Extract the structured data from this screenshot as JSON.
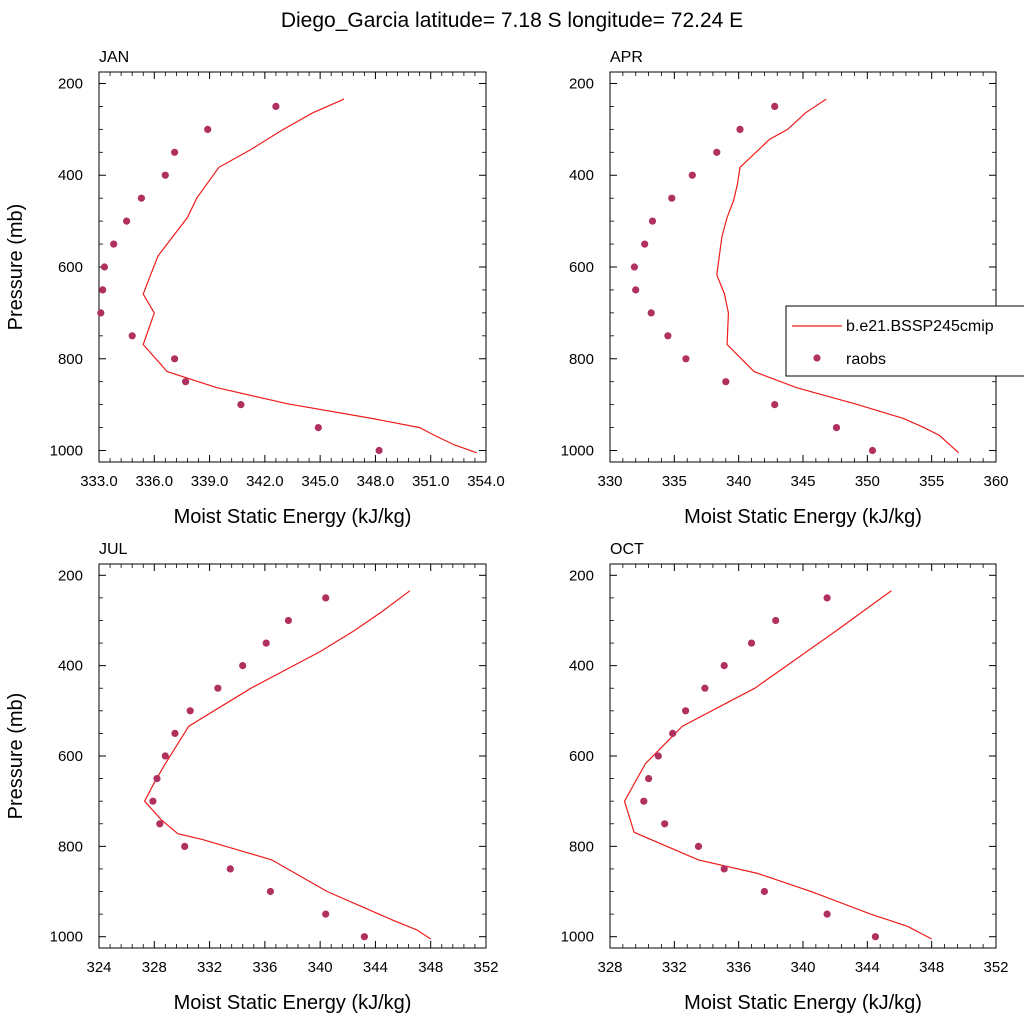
{
  "figure_title": "Diego_Garcia  latitude= 7.18 S longitude= 72.24 E",
  "legend": {
    "line_label": "b.e21.BSSP245cmip",
    "dots_label": "raobs"
  },
  "colors": {
    "model_line": "#ee1c1c",
    "raobs_dots": "#b03060"
  },
  "chart_data": [
    {
      "type": "scatter",
      "panel": "JAN",
      "xlabel": "Moist Static Energy (kJ/kg)",
      "ylabel": "Pressure (mb)",
      "xlim": [
        333,
        354
      ],
      "ylim": [
        1025,
        175
      ],
      "xticks": [
        333,
        336,
        339,
        342,
        345,
        348,
        351,
        354
      ],
      "xtick_labels": [
        "333.0",
        "336.0",
        "339.0",
        "342.0",
        "345.0",
        "348.0",
        "351.0",
        "354.0"
      ],
      "yticks": [
        200,
        400,
        600,
        800,
        1000
      ],
      "ytick_labels": [
        "200",
        "400",
        "600",
        "800",
        "1000"
      ],
      "series": [
        {
          "name": "b.e21.BSSP245cmip",
          "kind": "line",
          "x": [
            346.3,
            344.6,
            343.0,
            341.2,
            339.5,
            338.3,
            337.8,
            337.0,
            336.2,
            335.8,
            335.4,
            336.0,
            335.4,
            336.7,
            339.4,
            343.2,
            347.8,
            350.4,
            351.2,
            352.3,
            353.5
          ],
          "y": [
            234,
            264,
            300,
            345,
            383,
            450,
            492,
            534,
            576,
            617,
            659,
            700,
            769,
            828,
            863,
            898,
            930,
            950,
            967,
            988,
            1005
          ]
        },
        {
          "name": "raobs",
          "kind": "scatter",
          "x": [
            342.6,
            338.9,
            337.1,
            336.6,
            335.3,
            334.5,
            333.8,
            333.3,
            333.2,
            333.1,
            334.8,
            337.1,
            337.7,
            340.7,
            344.9,
            348.2
          ],
          "y": [
            250,
            300,
            350,
            400,
            450,
            500,
            550,
            600,
            650,
            700,
            750,
            800,
            850,
            900,
            950,
            1000
          ]
        }
      ]
    },
    {
      "type": "scatter",
      "panel": "APR",
      "xlabel": "Moist Static Energy (kJ/kg)",
      "ylabel": "",
      "xlim": [
        330,
        360
      ],
      "ylim": [
        1025,
        175
      ],
      "xticks": [
        330,
        335,
        340,
        345,
        350,
        355,
        360
      ],
      "xtick_labels": [
        "330",
        "335",
        "340",
        "345",
        "350",
        "355",
        "360"
      ],
      "yticks": [
        200,
        400,
        600,
        800,
        1000
      ],
      "ytick_labels": [
        "200",
        "400",
        "600",
        "800",
        "1000"
      ],
      "series": [
        {
          "name": "b.e21.BSSP245cmip",
          "kind": "line",
          "x": [
            346.8,
            345.2,
            343.8,
            342.4,
            340.1,
            339.9,
            339.6,
            339.1,
            338.7,
            338.3,
            338.9,
            339.2,
            339.1,
            341.2,
            344.5,
            349.0,
            352.8,
            354.4,
            355.6,
            357.1
          ],
          "y": [
            234,
            264,
            300,
            322,
            383,
            420,
            456,
            492,
            534,
            617,
            659,
            700,
            769,
            828,
            863,
            898,
            930,
            950,
            967,
            1005
          ]
        },
        {
          "name": "raobs",
          "kind": "scatter",
          "x": [
            342.8,
            340.1,
            338.3,
            336.4,
            334.8,
            333.3,
            332.7,
            331.9,
            332.0,
            333.2,
            334.5,
            335.9,
            339.0,
            342.8,
            347.6,
            350.4
          ],
          "y": [
            250,
            300,
            350,
            400,
            450,
            500,
            550,
            600,
            650,
            700,
            750,
            800,
            850,
            900,
            950,
            1000
          ]
        }
      ]
    },
    {
      "type": "scatter",
      "panel": "JUL",
      "xlabel": "Moist Static Energy (kJ/kg)",
      "ylabel": "Pressure (mb)",
      "xlim": [
        324,
        352
      ],
      "ylim": [
        1025,
        175
      ],
      "xticks": [
        324,
        328,
        332,
        336,
        340,
        344,
        348,
        352
      ],
      "xtick_labels": [
        "324",
        "328",
        "332",
        "336",
        "340",
        "344",
        "348",
        "352"
      ],
      "yticks": [
        200,
        400,
        600,
        800,
        1000
      ],
      "ytick_labels": [
        "200",
        "400",
        "600",
        "800",
        "1000"
      ],
      "series": [
        {
          "name": "b.e21.BSSP245cmip",
          "kind": "line",
          "x": [
            346.5,
            344.5,
            342.5,
            340.0,
            335.0,
            330.5,
            328.8,
            328.0,
            327.3,
            328.5,
            329.7,
            331.5,
            336.5,
            340.5,
            345.3,
            347.0,
            348.0
          ],
          "y": [
            234,
            280,
            322,
            369,
            450,
            534,
            617,
            659,
            700,
            741,
            772,
            785,
            830,
            900,
            964,
            985,
            1005
          ]
        },
        {
          "name": "raobs",
          "kind": "scatter",
          "x": [
            340.4,
            337.7,
            336.1,
            334.4,
            332.6,
            330.6,
            329.5,
            328.8,
            328.2,
            327.9,
            328.4,
            330.2,
            333.5,
            336.4,
            340.4,
            343.2
          ],
          "y": [
            250,
            300,
            350,
            400,
            450,
            500,
            550,
            600,
            650,
            700,
            750,
            800,
            850,
            900,
            950,
            1000
          ]
        }
      ]
    },
    {
      "type": "scatter",
      "panel": "OCT",
      "xlabel": "Moist Static Energy (kJ/kg)",
      "ylabel": "",
      "xlim": [
        328,
        352
      ],
      "ylim": [
        1025,
        175
      ],
      "xticks": [
        328,
        332,
        336,
        340,
        344,
        348,
        352
      ],
      "xtick_labels": [
        "328",
        "332",
        "336",
        "340",
        "344",
        "348",
        "352"
      ],
      "yticks": [
        200,
        400,
        600,
        800,
        1000
      ],
      "ytick_labels": [
        "200",
        "400",
        "600",
        "800",
        "1000"
      ],
      "series": [
        {
          "name": "b.e21.BSSP245cmip",
          "kind": "line",
          "x": [
            345.5,
            342.1,
            337.0,
            332.5,
            330.2,
            328.9,
            329.5,
            333.5,
            337.2,
            340.5,
            344.2,
            346.5,
            348.0
          ],
          "y": [
            234,
            322,
            450,
            534,
            617,
            700,
            769,
            830,
            860,
            900,
            950,
            977,
            1005
          ]
        },
        {
          "name": "raobs",
          "kind": "scatter",
          "x": [
            341.5,
            338.3,
            336.8,
            335.1,
            333.9,
            332.7,
            331.9,
            331.0,
            330.4,
            330.1,
            331.4,
            333.5,
            335.1,
            337.6,
            341.5,
            344.5
          ],
          "y": [
            250,
            300,
            350,
            400,
            450,
            500,
            550,
            600,
            650,
            700,
            750,
            800,
            850,
            900,
            950,
            1000
          ]
        }
      ]
    }
  ]
}
